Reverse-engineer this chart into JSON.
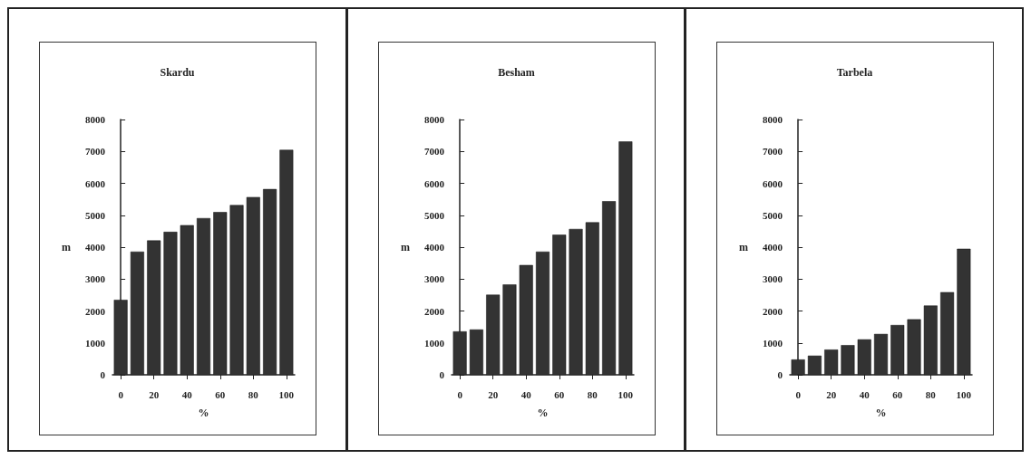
{
  "chart_data": [
    {
      "type": "bar",
      "title": "Skardu",
      "xlabel": "%",
      "ylabel": "m",
      "x": [
        0,
        10,
        20,
        30,
        40,
        50,
        60,
        70,
        80,
        90,
        100
      ],
      "values": [
        2350,
        3860,
        4210,
        4480,
        4690,
        4910,
        5100,
        5320,
        5570,
        5820,
        7050
      ],
      "color": "#333333",
      "xlim": [
        -5,
        105
      ],
      "xticks": [
        0,
        20,
        40,
        60,
        80,
        100
      ],
      "ylim": [
        0,
        8000
      ],
      "yticks": [
        0,
        1000,
        2000,
        3000,
        4000,
        5000,
        6000,
        7000,
        8000
      ],
      "grid": false
    },
    {
      "type": "bar",
      "title": "Besham",
      "xlabel": "%",
      "ylabel": "m",
      "x": [
        0,
        10,
        20,
        30,
        40,
        50,
        60,
        70,
        80,
        90,
        100
      ],
      "values": [
        1360,
        1420,
        2510,
        2830,
        3440,
        3860,
        4390,
        4570,
        4780,
        5440,
        7310
      ],
      "color": "#333333",
      "xlim": [
        -5,
        105
      ],
      "xticks": [
        0,
        20,
        40,
        60,
        80,
        100
      ],
      "ylim": [
        0,
        8000
      ],
      "yticks": [
        0,
        1000,
        2000,
        3000,
        4000,
        5000,
        6000,
        7000,
        8000
      ],
      "grid": false
    },
    {
      "type": "bar",
      "title": "Tarbela",
      "xlabel": "%",
      "ylabel": "m",
      "x": [
        0,
        10,
        20,
        30,
        40,
        50,
        60,
        70,
        80,
        90,
        100
      ],
      "values": [
        480,
        600,
        790,
        930,
        1110,
        1280,
        1560,
        1740,
        2170,
        2590,
        3950
      ],
      "color": "#333333",
      "xlim": [
        -5,
        105
      ],
      "xticks": [
        0,
        20,
        40,
        60,
        80,
        100
      ],
      "ylim": [
        0,
        8000
      ],
      "yticks": [
        0,
        1000,
        2000,
        3000,
        4000,
        5000,
        6000,
        7000,
        8000
      ],
      "grid": false
    }
  ]
}
